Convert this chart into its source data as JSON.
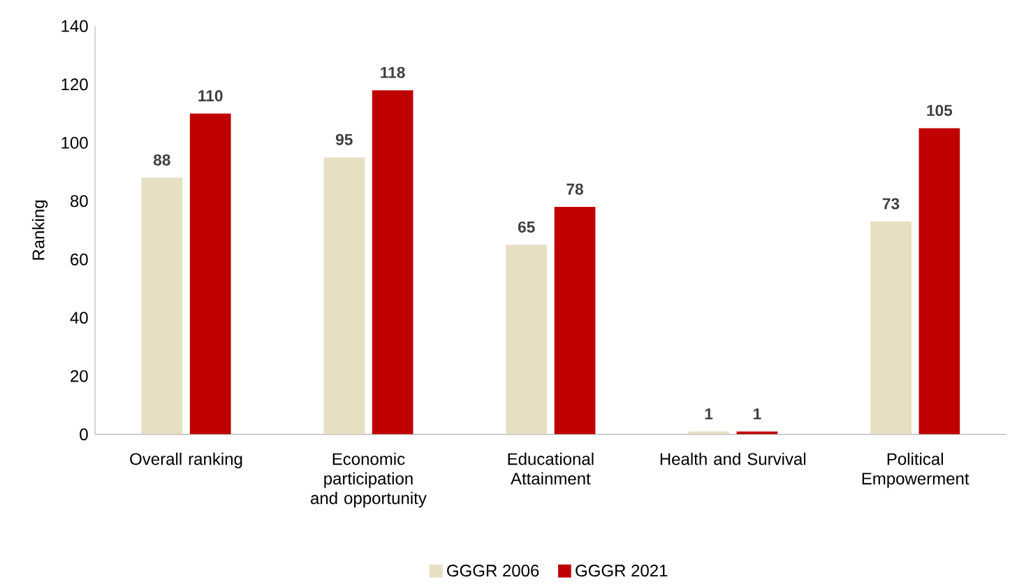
{
  "chart_data": {
    "type": "bar",
    "ylabel": "Ranking",
    "categories": [
      "Overall ranking",
      "Economic participation and opportunity",
      "Educational Attainment",
      "Health and Survival",
      "Political Empowerment"
    ],
    "series": [
      {
        "name": "GGGR 2006",
        "color": "#e6dfc2",
        "values": [
          88,
          95,
          65,
          1,
          73
        ]
      },
      {
        "name": "GGGR 2021",
        "color": "#c00000",
        "values": [
          110,
          118,
          78,
          1,
          105
        ]
      }
    ],
    "ylim": [
      0,
      140
    ],
    "yticks": [
      0,
      20,
      40,
      60,
      80,
      100,
      120,
      140
    ],
    "data_labels": true,
    "legend": "bottom",
    "grid": false
  }
}
